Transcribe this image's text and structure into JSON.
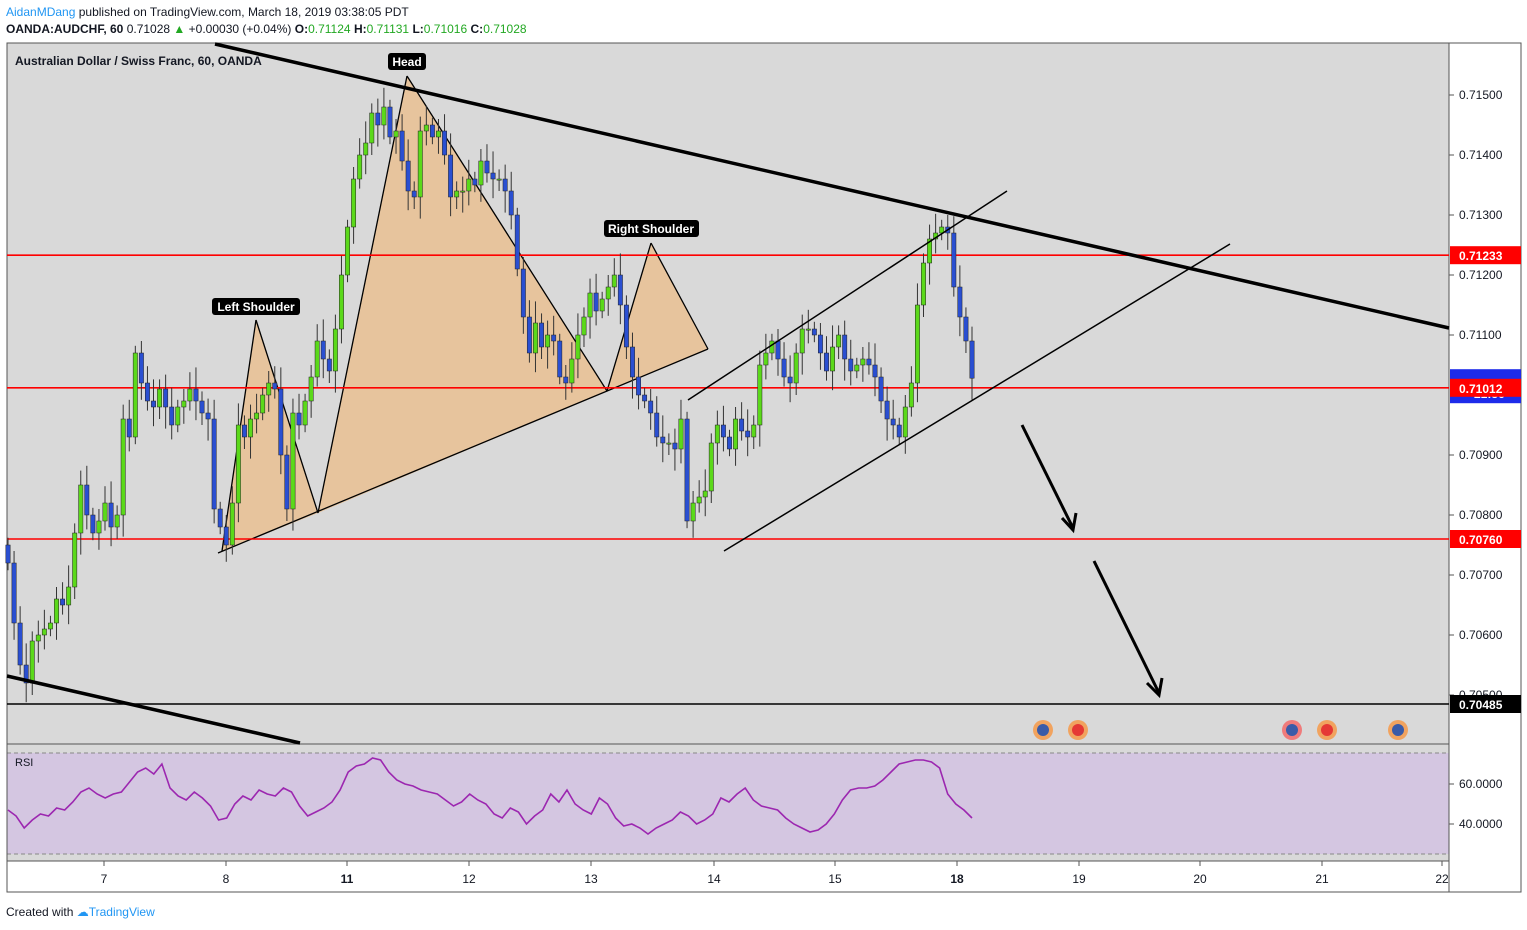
{
  "header": {
    "author": "AidanMDang",
    "published": "published on TradingView.com, March 18, 2019 03:38:05 PDT",
    "symbol": "OANDA:AUDCHF, 60",
    "last": "0.71028",
    "change_arrow": "▲",
    "change": "+0.00030 (+0.04%)",
    "o_label": "O:",
    "o": "0.71124",
    "h_label": "H:",
    "h": "0.71131",
    "l_label": "L:",
    "l": "0.71016",
    "c_label": "C:",
    "c": "0.71028"
  },
  "footer": {
    "created_with": "Created with",
    "brand": "TradingView"
  },
  "colors": {
    "background": "#d9d9d9",
    "rsi_band": "#d4c6e1",
    "rsi_line": "#9c27b0",
    "up_body": "#5bd91a",
    "down_body": "#2a4fd1",
    "support": "#ff0000",
    "pattern_fill": "#f2b26b",
    "trendline": "#000000"
  },
  "chart_data": {
    "type": "candlestick",
    "title": "Australian Dollar / Swiss Franc, 60, OANDA",
    "x_ticks": [
      "7",
      "8",
      "11",
      "12",
      "13",
      "14",
      "15",
      "18",
      "19",
      "20",
      "21",
      "22"
    ],
    "bold_ticks": [
      "11",
      "18"
    ],
    "y_ticks": [
      "0.71500",
      "0.71400",
      "0.71300",
      "0.71200",
      "0.71100",
      "0.70900",
      "0.70800",
      "0.70700",
      "0.70600",
      "0.70500"
    ],
    "ylim": [
      0.7044,
      0.7158
    ],
    "price_levels": [
      {
        "value": 0.71233,
        "label": "0.71233",
        "style": "red"
      },
      {
        "value": 0.71012,
        "label": "0.71012",
        "style": "red"
      },
      {
        "value": 0.7076,
        "label": "0.70760",
        "style": "red"
      },
      {
        "value": 0.70485,
        "label": "0.70485",
        "style": "black"
      }
    ],
    "current_price": {
      "label": "0.71028",
      "countdown": "21:56"
    },
    "annotations": [
      "Head",
      "Left Shoulder",
      "Right Shoulder"
    ],
    "candles_close": [
      0.7072,
      0.7062,
      0.7055,
      0.7052,
      0.7059,
      0.706,
      0.7061,
      0.7062,
      0.7066,
      0.7065,
      0.7068,
      0.7077,
      0.7085,
      0.708,
      0.7077,
      0.7079,
      0.7082,
      0.7078,
      0.708,
      0.7096,
      0.7093,
      0.7107,
      0.7102,
      0.7099,
      0.7098,
      0.7101,
      0.7098,
      0.7095,
      0.7098,
      0.7099,
      0.7101,
      0.7099,
      0.7097,
      0.7096,
      0.7081,
      0.7078,
      0.7075,
      0.7082,
      0.7095,
      0.7093,
      0.7096,
      0.7097,
      0.71,
      0.7102,
      0.7101,
      0.709,
      0.7081,
      0.7097,
      0.7095,
      0.7099,
      0.7103,
      0.7109,
      0.7106,
      0.7104,
      0.7111,
      0.712,
      0.7128,
      0.7136,
      0.714,
      0.7142,
      0.7147,
      0.7145,
      0.7148,
      0.7143,
      0.7144,
      0.7139,
      0.7134,
      0.7133,
      0.7144,
      0.7145,
      0.7143,
      0.7144,
      0.714,
      0.7133,
      0.7134,
      0.7134,
      0.7136,
      0.7135,
      0.7139,
      0.7137,
      0.7136,
      0.7136,
      0.7134,
      0.713,
      0.7121,
      0.7113,
      0.7107,
      0.7112,
      0.7108,
      0.711,
      0.7109,
      0.7103,
      0.7102,
      0.7106,
      0.711,
      0.7113,
      0.7117,
      0.7114,
      0.7116,
      0.7118,
      0.712,
      0.7115,
      0.7108,
      0.7103,
      0.71,
      0.7099,
      0.7097,
      0.7093,
      0.7092,
      0.7092,
      0.7091,
      0.7096,
      0.7079,
      0.7082,
      0.7083,
      0.7084,
      0.7092,
      0.7095,
      0.7093,
      0.7091,
      0.7096,
      0.7094,
      0.7093,
      0.7095,
      0.7105,
      0.7107,
      0.7109,
      0.7106,
      0.7103,
      0.7102,
      0.7107,
      0.7111,
      0.7111,
      0.711,
      0.7107,
      0.7104,
      0.7108,
      0.711,
      0.7106,
      0.7104,
      0.7105,
      0.7106,
      0.7105,
      0.7103,
      0.7099,
      0.7096,
      0.7095,
      0.7093,
      0.7098,
      0.7102,
      0.7115,
      0.7122,
      0.7126,
      0.7127,
      0.7128,
      0.7127,
      0.7118,
      0.7113,
      0.7109,
      0.71028
    ],
    "rsi": {
      "label": "RSI",
      "y_ticks": [
        "60.0000",
        "40.0000"
      ],
      "ylim": [
        28,
        77
      ],
      "overbought": 70,
      "oversold": 30,
      "values": [
        47,
        44,
        38,
        42,
        45,
        44,
        48,
        47,
        51,
        56,
        58,
        55,
        53,
        55,
        56,
        61,
        66,
        68,
        65,
        70,
        58,
        54,
        52,
        56,
        53,
        49,
        42,
        43,
        50,
        54,
        52,
        57,
        55,
        54,
        58,
        56,
        49,
        44,
        46,
        48,
        51,
        57,
        66,
        69,
        70,
        73,
        72,
        66,
        62,
        60,
        59,
        57,
        56,
        55,
        52,
        49,
        51,
        55,
        52,
        50,
        45,
        43,
        48,
        46,
        40,
        44,
        47,
        55,
        51,
        57,
        50,
        47,
        45,
        53,
        50,
        43,
        39,
        40,
        38,
        35,
        38,
        40,
        42,
        46,
        44,
        40,
        42,
        45,
        53,
        51,
        55,
        58,
        52,
        49,
        48,
        47,
        43,
        40,
        38,
        36,
        37,
        40,
        45,
        52,
        57,
        58,
        58,
        59,
        62,
        66,
        70,
        71,
        72,
        72,
        71,
        68,
        55,
        50,
        47,
        43
      ]
    }
  }
}
